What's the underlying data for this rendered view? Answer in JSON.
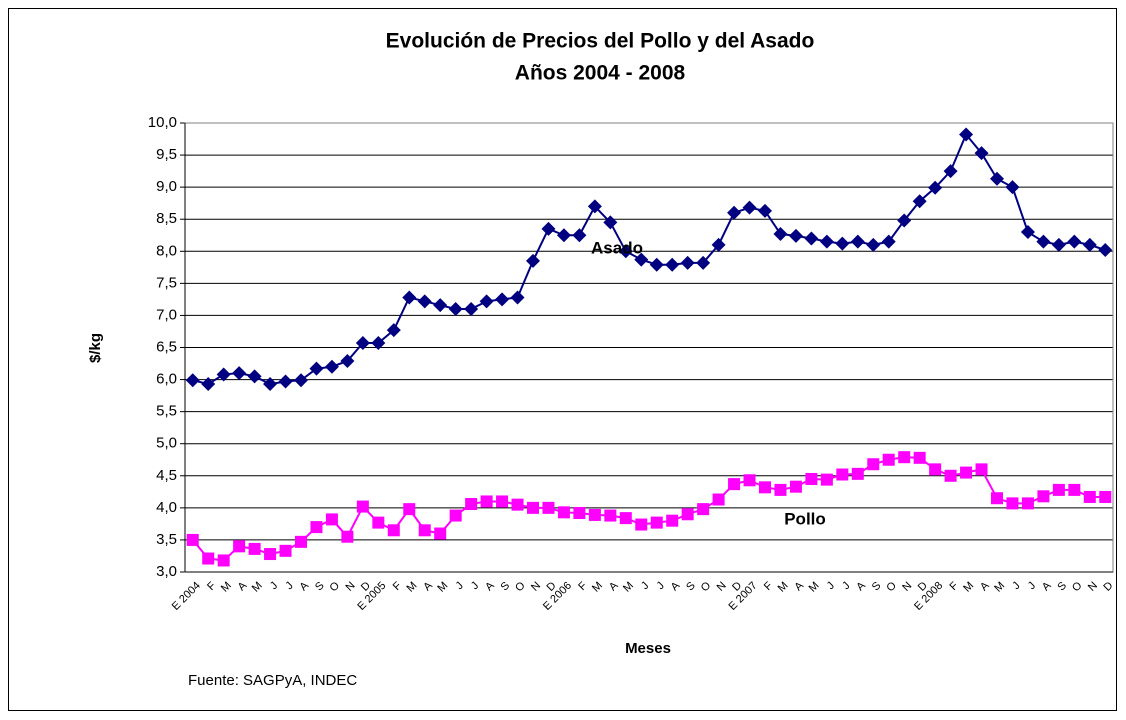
{
  "chart_data": {
    "type": "line",
    "title": "Evolución de Precios del Pollo y del Asado",
    "subtitle": "Años 2004 - 2008",
    "ylabel": "$/kg",
    "xlabel": "Meses",
    "source": "Fuente: SAGPyA, INDEC",
    "annotations": [
      "Asado",
      "Pollo"
    ],
    "grid": true,
    "categories": [
      "E 2004",
      "F",
      "M",
      "A",
      "M",
      "J",
      "J",
      "A",
      "S",
      "O",
      "N",
      "D",
      "E 2005",
      "F",
      "M",
      "A",
      "M",
      "J",
      "J",
      "A",
      "S",
      "O",
      "N",
      "D",
      "E 2006",
      "F",
      "M",
      "A",
      "M",
      "J",
      "J",
      "A",
      "S",
      "O",
      "N",
      "D",
      "E 2007",
      "F",
      "M",
      "A",
      "M",
      "J",
      "J",
      "A",
      "S",
      "O",
      "N",
      "D",
      "E 2008",
      "F",
      "M",
      "A",
      "M",
      "J",
      "J",
      "A",
      "S",
      "O",
      "N",
      "D"
    ],
    "ylim": [
      3,
      10
    ],
    "yticks": [
      {
        "value": 3,
        "label": "3,0"
      },
      {
        "value": 3.5,
        "label": "3,5"
      },
      {
        "value": 4,
        "label": "4,0"
      },
      {
        "value": 4.5,
        "label": "4,5"
      },
      {
        "value": 5,
        "label": "5,0"
      },
      {
        "value": 5.5,
        "label": "5,5"
      },
      {
        "value": 6,
        "label": "6,0"
      },
      {
        "value": 6.5,
        "label": "6,5"
      },
      {
        "value": 7,
        "label": "7,0"
      },
      {
        "value": 7.5,
        "label": "7,5"
      },
      {
        "value": 8,
        "label": "8,0"
      },
      {
        "value": 8.5,
        "label": "8,5"
      },
      {
        "value": 9,
        "label": "9,0"
      },
      {
        "value": 9.5,
        "label": "9,5"
      },
      {
        "value": 10,
        "label": "10,0"
      }
    ],
    "series": [
      {
        "name": "Asado",
        "color": "#000080",
        "marker": "diamond",
        "values": [
          5.99,
          5.93,
          6.08,
          6.1,
          6.05,
          5.93,
          5.97,
          5.99,
          6.17,
          6.2,
          6.29,
          6.57,
          6.57,
          6.77,
          7.28,
          7.22,
          7.16,
          7.1,
          7.1,
          7.22,
          7.25,
          7.28,
          7.85,
          8.35,
          8.25,
          8.25,
          8.7,
          8.45,
          8.0,
          7.87,
          7.79,
          7.79,
          7.82,
          7.82,
          8.1,
          8.6,
          8.68,
          8.63,
          8.27,
          8.24,
          8.2,
          8.15,
          8.12,
          8.15,
          8.1,
          8.15,
          8.48,
          8.78,
          8.99,
          9.25,
          9.82,
          9.53,
          9.13,
          9.0,
          8.3,
          8.15,
          8.1,
          8.15,
          8.1,
          8.02
        ]
      },
      {
        "name": "Pollo",
        "color": "#ff00ff",
        "marker": "square",
        "values": [
          3.5,
          3.21,
          3.18,
          3.4,
          3.36,
          3.28,
          3.33,
          3.47,
          3.7,
          3.82,
          3.55,
          4.02,
          3.77,
          3.65,
          3.98,
          3.65,
          3.6,
          3.88,
          4.06,
          4.1,
          4.1,
          4.05,
          4.0,
          4.0,
          3.93,
          3.92,
          3.89,
          3.88,
          3.84,
          3.74,
          3.77,
          3.8,
          3.9,
          3.98,
          4.13,
          4.37,
          4.43,
          4.32,
          4.28,
          4.33,
          4.45,
          4.44,
          4.52,
          4.53,
          4.68,
          4.75,
          4.79,
          4.78,
          4.6,
          4.5,
          4.55,
          4.6,
          4.15,
          4.07,
          4.07,
          4.18,
          4.28,
          4.28,
          4.17,
          4.17
        ]
      }
    ]
  }
}
